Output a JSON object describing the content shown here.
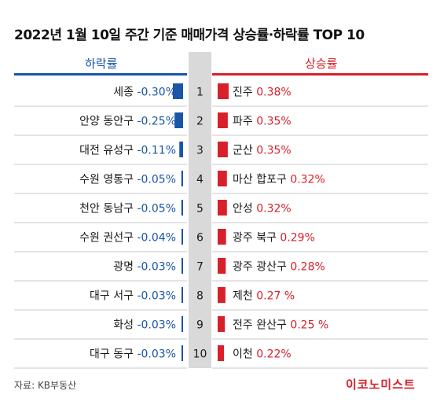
{
  "title": "2022년 1월 10일 주간 기준 매매가격 상승률·하락률 TOP 10",
  "left_header": "하락률",
  "right_header": "상승률",
  "source": "자료: KB부동산",
  "brand": "이코노미스트",
  "colors": {
    "decline": "#1a55a8",
    "rise": "#d8202a",
    "rank_bg": "#d9d9d9",
    "divider": "#c8c8c8"
  },
  "chart_data": [
    {
      "type": "bar",
      "title": "하락률",
      "ranks": [
        "1",
        "2",
        "3",
        "4",
        "5",
        "6",
        "7",
        "8",
        "9",
        "10"
      ],
      "categories": [
        "세종",
        "안양 동안구",
        "대전 유성구",
        "수원 영통구",
        "천안 동남구",
        "수원 권선구",
        "광명",
        "대구 서구",
        "화성",
        "대구 동구"
      ],
      "values": [
        -0.3,
        -0.25,
        -0.11,
        -0.05,
        -0.05,
        -0.04,
        -0.03,
        -0.03,
        -0.03,
        -0.03
      ],
      "labels": [
        "-0.30%",
        "-0.25%",
        "-0.11%",
        "-0.05%",
        "-0.05%",
        "-0.04%",
        "-0.03%",
        "-0.03%",
        "-0.03%",
        "-0.03%"
      ]
    },
    {
      "type": "bar",
      "title": "상승률",
      "ranks": [
        "1",
        "2",
        "3",
        "4",
        "5",
        "6",
        "7",
        "8",
        "9",
        "10"
      ],
      "categories": [
        "진주",
        "파주",
        "군산",
        "마산 합포구",
        "안성",
        "광주 북구",
        "광주 광산구",
        "제천",
        "전주 완산구",
        "이천"
      ],
      "values": [
        0.38,
        0.35,
        0.35,
        0.32,
        0.32,
        0.29,
        0.28,
        0.27,
        0.25,
        0.22
      ],
      "labels": [
        "0.38%",
        "0.35%",
        "0.35%",
        "0.32%",
        "0.32%",
        "0.29%",
        "0.28%",
        "0.27 %",
        "0.25 %",
        "0.22%"
      ]
    }
  ]
}
